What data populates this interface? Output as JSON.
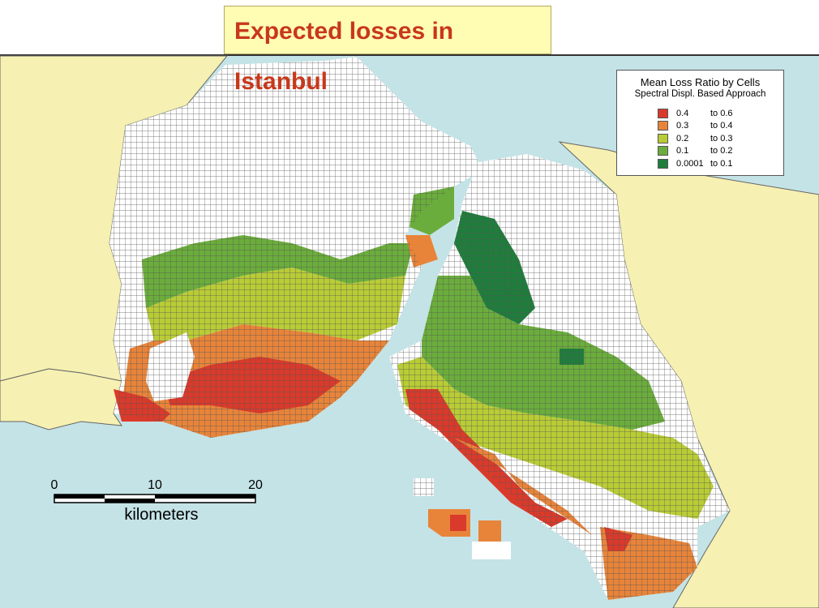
{
  "title": "Expected losses in Istanbul",
  "legend": {
    "title": "Mean Loss Ratio by Cells",
    "subtitle": "Spectral Displ. Based Approach",
    "items": [
      {
        "from": "0.4",
        "to": "to 0.6",
        "color": "#d93a2b"
      },
      {
        "from": "0.3",
        "to": "to 0.4",
        "color": "#e8843a"
      },
      {
        "from": "0.2",
        "to": "to 0.3",
        "color": "#b9cc36"
      },
      {
        "from": "0.1",
        "to": "to 0.2",
        "color": "#6bad3c"
      },
      {
        "from": "0.0001",
        "to": "to 0.1",
        "color": "#1f7d3c"
      }
    ]
  },
  "scale_bar": {
    "ticks": [
      "0",
      "10",
      "20"
    ],
    "unit": "kilometers"
  }
}
